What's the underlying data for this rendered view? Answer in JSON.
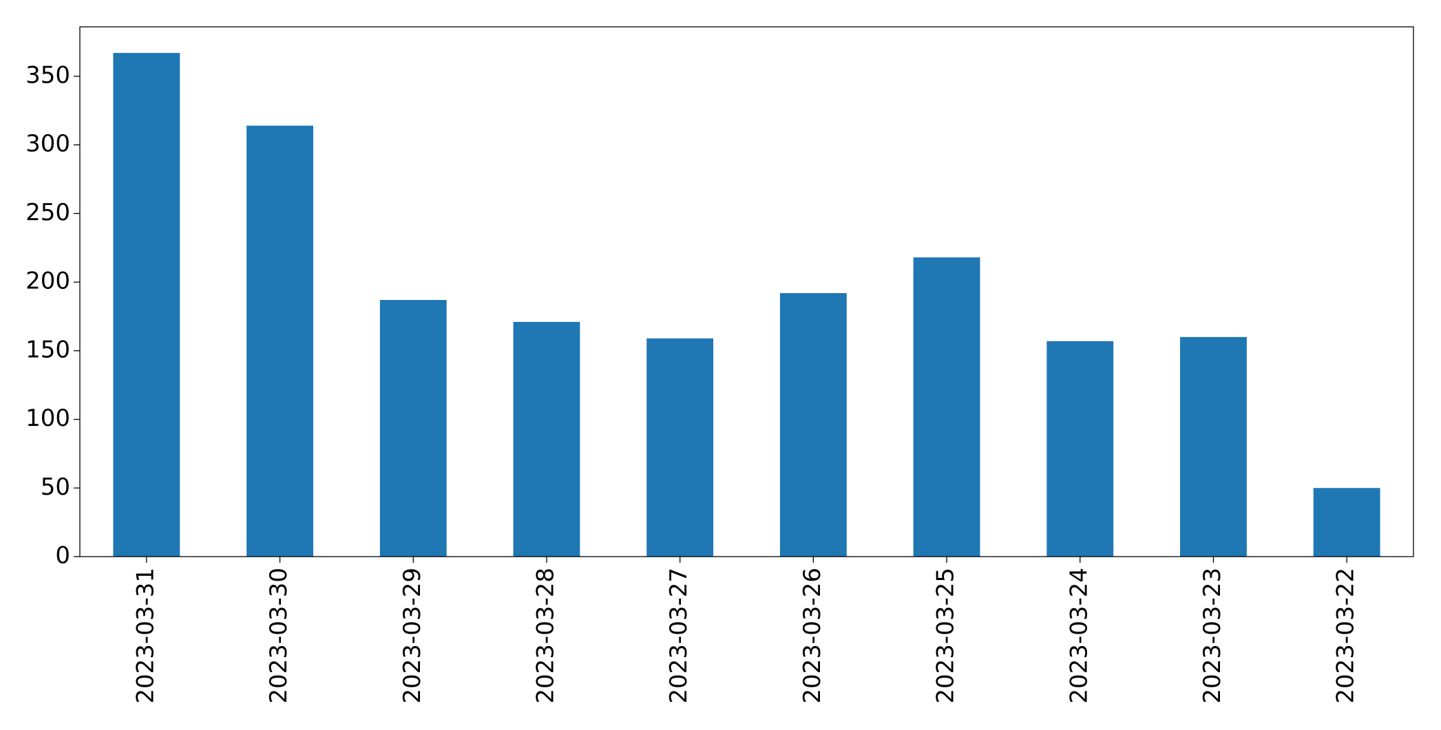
{
  "chart_data": {
    "type": "bar",
    "categories": [
      "2023-03-31",
      "2023-03-30",
      "2023-03-29",
      "2023-03-28",
      "2023-03-27",
      "2023-03-26",
      "2023-03-25",
      "2023-03-24",
      "2023-03-23",
      "2023-03-22"
    ],
    "values": [
      367,
      314,
      187,
      171,
      159,
      192,
      218,
      157,
      160,
      50
    ],
    "color": "#1f77b4",
    "ylim": [
      0,
      386
    ],
    "yticks": [
      0,
      50,
      100,
      150,
      200,
      250,
      300,
      350
    ],
    "grid": false
  }
}
